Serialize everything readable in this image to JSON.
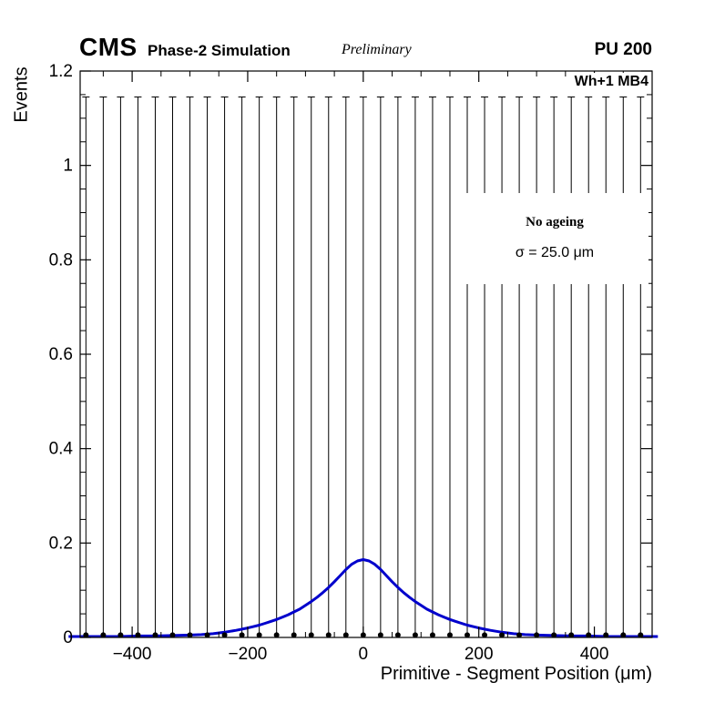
{
  "header": {
    "experiment": "CMS",
    "subtitle": "Phase-2 Simulation",
    "preliminary": "Preliminary",
    "pileup_label": "PU 200"
  },
  "plot": {
    "corner_label": "Wh+1 MB4",
    "legend": {
      "line1": "No ageing",
      "line2": "σ = 25.0 μm"
    }
  },
  "chart_data": {
    "type": "scatter",
    "title": "",
    "xlabel": "Primitive - Segment Position (μm)",
    "ylabel": "Events",
    "xlim": [
      -490,
      500
    ],
    "ylim": [
      0,
      1.2
    ],
    "grid": false,
    "x_ticks": [
      -400,
      -200,
      0,
      200,
      400
    ],
    "x_tick_labels": [
      "−400",
      "−200",
      "0",
      "200",
      "400"
    ],
    "x_minor_step": 50,
    "y_ticks": [
      0,
      0.2,
      0.4,
      0.6,
      0.8,
      1,
      1.2
    ],
    "y_tick_labels": [
      "0",
      "0.2",
      "0.4",
      "0.6",
      "0.8",
      "1",
      "1.2"
    ],
    "y_minor_step": 0.05,
    "frame_color": "#000000",
    "series": [
      {
        "name": "data-bins",
        "type": "errorbar",
        "marker": "dot",
        "color": "#000000",
        "bin_width_um": 30,
        "x": [
          -480,
          -450,
          -420,
          -390,
          -360,
          -330,
          -300,
          -270,
          -240,
          -210,
          -180,
          -150,
          -120,
          -90,
          -60,
          -30,
          0,
          30,
          60,
          90,
          120,
          150,
          180,
          210,
          240,
          270,
          300,
          330,
          360,
          390,
          420,
          450,
          480
        ],
        "y_value": 0.005,
        "yerr_top": 1.145
      },
      {
        "name": "fit-curve",
        "type": "line",
        "color": "#0000cc",
        "peak": 0.165,
        "center": 0,
        "x": [
          -510,
          -480,
          -450,
          -420,
          -390,
          -360,
          -330,
          -300,
          -280,
          -260,
          -240,
          -220,
          -200,
          -190,
          -180,
          -170,
          -160,
          -150,
          -140,
          -130,
          -120,
          -110,
          -100,
          -90,
          -80,
          -70,
          -60,
          -50,
          -40,
          -30,
          -20,
          -10,
          0,
          10,
          20,
          30,
          40,
          50,
          60,
          70,
          80,
          90,
          100,
          110,
          120,
          130,
          140,
          150,
          160,
          170,
          180,
          190,
          200,
          220,
          240,
          260,
          280,
          300,
          330,
          360,
          390,
          420,
          450,
          480,
          510
        ],
        "y": [
          0.002,
          0.002,
          0.002,
          0.002,
          0.003,
          0.003,
          0.004,
          0.005,
          0.006,
          0.008,
          0.011,
          0.015,
          0.02,
          0.023,
          0.026,
          0.03,
          0.034,
          0.038,
          0.043,
          0.048,
          0.054,
          0.06,
          0.068,
          0.076,
          0.085,
          0.095,
          0.106,
          0.118,
          0.131,
          0.144,
          0.155,
          0.162,
          0.165,
          0.162,
          0.155,
          0.144,
          0.131,
          0.118,
          0.106,
          0.095,
          0.085,
          0.076,
          0.068,
          0.06,
          0.054,
          0.048,
          0.043,
          0.038,
          0.034,
          0.03,
          0.026,
          0.023,
          0.02,
          0.015,
          0.011,
          0.008,
          0.006,
          0.005,
          0.004,
          0.003,
          0.003,
          0.002,
          0.002,
          0.002,
          0.002
        ]
      }
    ]
  }
}
